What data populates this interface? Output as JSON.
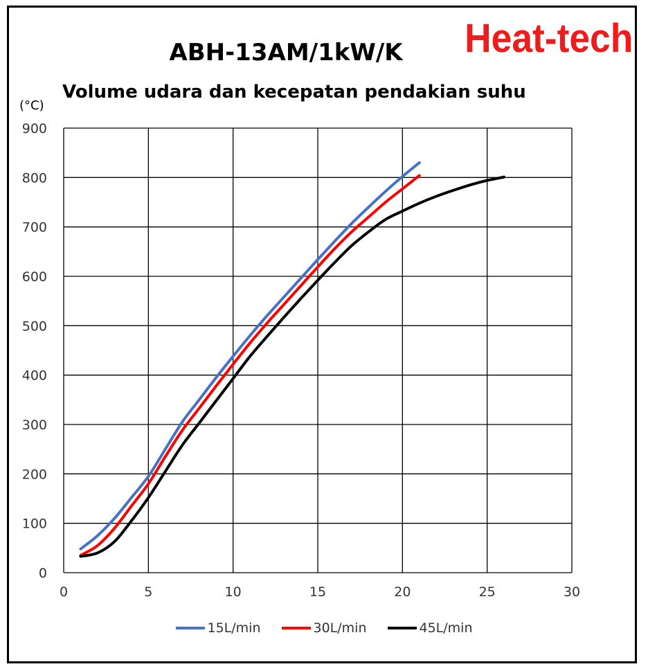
{
  "brand": "Heat-tech",
  "colors": {
    "brand": "#ee1c1c",
    "series": [
      "#4472c4",
      "#ff0000",
      "#000000"
    ]
  },
  "chart_data": {
    "type": "line",
    "title": "ABH-13AM/1kW/K",
    "subtitle": "Volume udara dan kecepatan pendakian suhu",
    "ylabel": "(°C)",
    "xlabel": "",
    "xlim": [
      0,
      30
    ],
    "ylim": [
      0,
      900
    ],
    "xticks": [
      0,
      5,
      10,
      15,
      20,
      25,
      30
    ],
    "yticks": [
      0,
      100,
      200,
      300,
      400,
      500,
      600,
      700,
      800,
      900
    ],
    "grid": true,
    "legend_position": "bottom",
    "series": [
      {
        "name": "15L/min",
        "color": "#4472c4",
        "x": [
          1,
          2,
          3,
          4,
          5,
          6,
          7,
          8,
          9,
          10,
          11,
          12,
          13,
          14,
          15,
          16,
          17,
          18,
          19,
          20,
          21
        ],
        "y": [
          48,
          75,
          110,
          152,
          195,
          250,
          305,
          350,
          395,
          438,
          480,
          520,
          558,
          596,
          634,
          671,
          707,
          740,
          772,
          802,
          830
        ]
      },
      {
        "name": "30L/min",
        "color": "#ff0000",
        "x": [
          1,
          2,
          3,
          4,
          5,
          6,
          7,
          8,
          9,
          10,
          11,
          12,
          13,
          14,
          15,
          16,
          17,
          18,
          19,
          20,
          21
        ],
        "y": [
          35,
          55,
          90,
          135,
          180,
          235,
          288,
          333,
          378,
          422,
          465,
          505,
          543,
          581,
          619,
          656,
          690,
          720,
          750,
          777,
          804
        ]
      },
      {
        "name": "45L/min",
        "color": "#000000",
        "x": [
          1,
          2,
          3,
          4,
          5,
          6,
          7,
          8,
          9,
          10,
          11,
          12,
          13,
          14,
          15,
          16,
          17,
          18,
          19,
          20,
          21,
          22,
          23,
          24,
          25,
          26
        ],
        "y": [
          33,
          40,
          63,
          105,
          152,
          205,
          258,
          303,
          348,
          393,
          438,
          478,
          517,
          555,
          592,
          628,
          662,
          690,
          715,
          732,
          748,
          762,
          774,
          785,
          794,
          801
        ]
      }
    ]
  }
}
